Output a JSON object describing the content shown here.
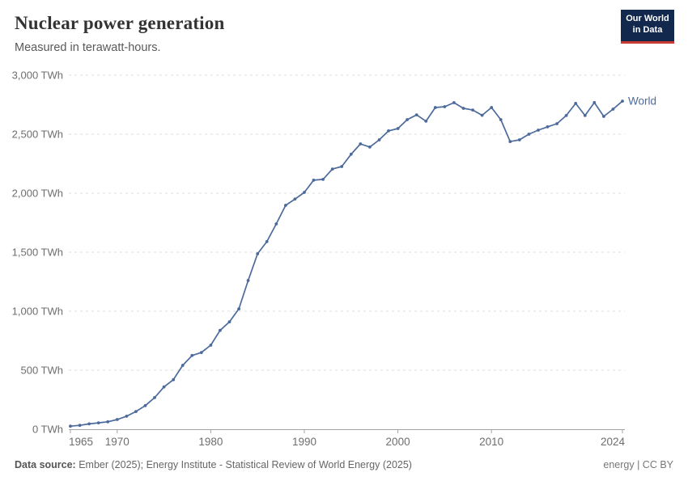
{
  "header": {
    "title": "Nuclear power generation",
    "subtitle": "Measured in terawatt-hours.",
    "logo": {
      "line1": "Our World",
      "line2": "in Data"
    }
  },
  "chart_data": {
    "type": "line",
    "title": "Nuclear power generation",
    "unit": "TWh",
    "grid": "horizontal-dashed",
    "legend_position": "end-of-line-label",
    "ylim": [
      0,
      3000
    ],
    "yticks": [
      0,
      500,
      1000,
      1500,
      2000,
      2500,
      3000
    ],
    "ytick_labels": [
      "0 TWh",
      "500 TWh",
      "1,000 TWh",
      "1,500 TWh",
      "2,000 TWh",
      "2,500 TWh",
      "3,000 TWh"
    ],
    "xticks": [
      1965,
      1970,
      1980,
      1990,
      2000,
      2010,
      2024
    ],
    "xtick_labels": [
      "1965",
      "1970",
      "1980",
      "1990",
      "2000",
      "2010",
      "2024"
    ],
    "x": [
      1965,
      1966,
      1967,
      1968,
      1969,
      1970,
      1971,
      1972,
      1973,
      1974,
      1975,
      1976,
      1977,
      1978,
      1979,
      1980,
      1981,
      1982,
      1983,
      1984,
      1985,
      1986,
      1987,
      1988,
      1989,
      1990,
      1991,
      1992,
      1993,
      1994,
      1995,
      1996,
      1997,
      1998,
      1999,
      2000,
      2001,
      2002,
      2003,
      2004,
      2005,
      2006,
      2007,
      2008,
      2009,
      2010,
      2011,
      2012,
      2013,
      2014,
      2015,
      2016,
      2017,
      2018,
      2019,
      2020,
      2021,
      2022,
      2023,
      2024
    ],
    "series": [
      {
        "name": "World",
        "color": "#4c6a9c",
        "values": [
          26,
          33,
          45,
          54,
          63,
          82,
          110,
          150,
          200,
          268,
          358,
          420,
          541,
          625,
          650,
          712,
          838,
          910,
          1020,
          1260,
          1486,
          1590,
          1740,
          1897,
          1950,
          2007,
          2110,
          2117,
          2205,
          2226,
          2330,
          2418,
          2391,
          2452,
          2528,
          2548,
          2623,
          2664,
          2610,
          2726,
          2733,
          2767,
          2719,
          2705,
          2660,
          2726,
          2623,
          2438,
          2452,
          2500,
          2534,
          2562,
          2589,
          2658,
          2761,
          2658,
          2768,
          2651,
          2712,
          2780
        ]
      }
    ]
  },
  "footer": {
    "source_label": "Data source:",
    "source_text": " Ember (2025); Energy Institute - Statistical Review of World Energy (2025)",
    "license": "energy | CC BY"
  },
  "colors": {
    "series_blue": "#4c6a9c",
    "grid": "#dddddd",
    "axis_line": "#a3a3a3",
    "axis_text": "#6e6e6e",
    "logo_bg": "#12294d",
    "logo_red": "#c93b32"
  }
}
